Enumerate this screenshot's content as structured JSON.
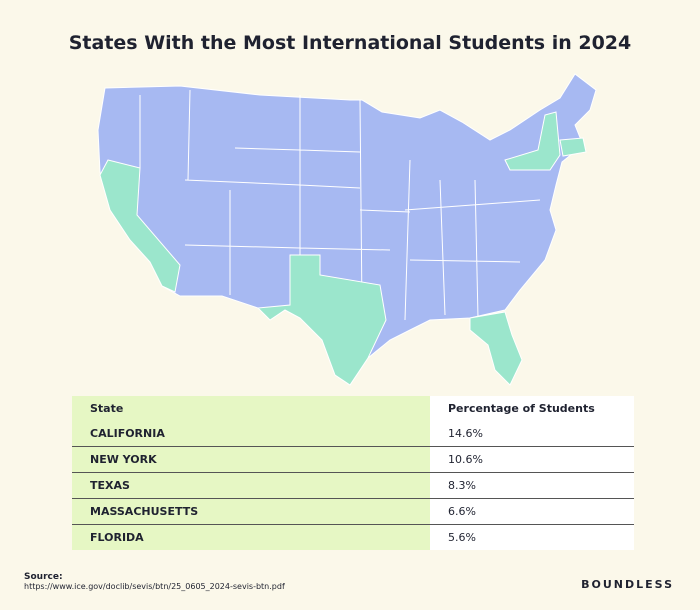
{
  "title": "States With the Most International Students in 2024",
  "table": {
    "header": [
      "State",
      "Percentage of Students"
    ],
    "rows": [
      [
        "CALIFORNIA",
        "14.6%"
      ],
      [
        "NEW YORK",
        "10.6%"
      ],
      [
        "TEXAS",
        "8.3%"
      ],
      [
        "MASSACHUSETTS",
        "6.6%"
      ],
      [
        "FLORIDA",
        "5.6%"
      ]
    ]
  },
  "source": {
    "label": "Source:",
    "url": "https://www.ice.gov/doclib/sevis/btn/25_0605_2024-sevis-btn.pdf"
  },
  "brand": "BOUNDLESS"
}
